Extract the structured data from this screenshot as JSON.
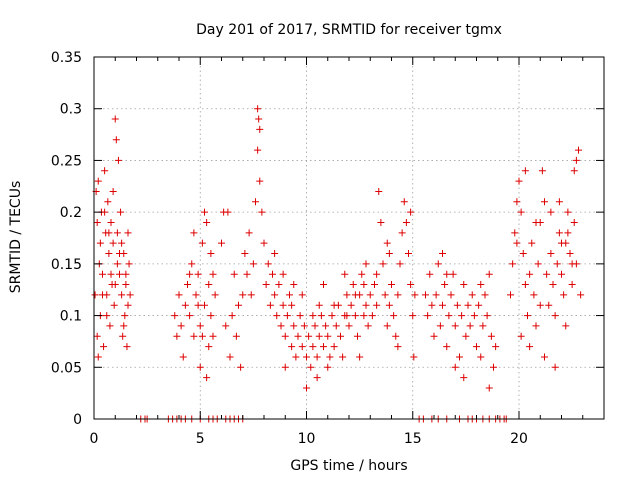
{
  "chart_data": {
    "type": "scatter",
    "title": "Day 201 of 2017, SRMTID for receiver tgmx",
    "xlabel": "GPS time / hours",
    "ylabel": "SRMTID / TECUs",
    "xlim": [
      0,
      24
    ],
    "ylim": [
      0,
      0.35
    ],
    "xticks": [
      0,
      5,
      10,
      15,
      20
    ],
    "yticks": [
      0,
      0.05,
      0.1,
      0.15,
      0.2,
      0.25,
      0.3,
      0.35
    ],
    "xtick_labels": [
      "0",
      "5",
      "10",
      "15",
      "20"
    ],
    "ytick_labels": [
      "0",
      "0.05",
      "0.1",
      "0.15",
      "0.2",
      "0.25",
      "0.3",
      "0.35"
    ],
    "grid": true,
    "marker": "plus",
    "color": "#dd0000",
    "series": [
      {
        "name": "SRMTID",
        "points": [
          [
            0.05,
            0.12
          ],
          [
            0.1,
            0.22
          ],
          [
            0.15,
            0.08
          ],
          [
            0.2,
            0.23
          ],
          [
            0.25,
            0.15
          ],
          [
            0.3,
            0.1
          ],
          [
            0.35,
            0.2
          ],
          [
            0.4,
            0.14
          ],
          [
            0.45,
            0.07
          ],
          [
            0.5,
            0.24
          ],
          [
            0.55,
            0.18
          ],
          [
            0.6,
            0.12
          ],
          [
            0.65,
            0.21
          ],
          [
            0.7,
            0.16
          ],
          [
            0.75,
            0.09
          ],
          [
            0.8,
            0.19
          ],
          [
            0.85,
            0.13
          ],
          [
            0.9,
            0.17
          ],
          [
            0.95,
            0.11
          ],
          [
            1.0,
            0.29
          ],
          [
            1.05,
            0.27
          ],
          [
            1.1,
            0.15
          ],
          [
            1.15,
            0.25
          ],
          [
            1.2,
            0.14
          ],
          [
            1.25,
            0.2
          ],
          [
            1.3,
            0.12
          ],
          [
            1.35,
            0.08
          ],
          [
            1.4,
            0.16
          ],
          [
            1.45,
            0.1
          ],
          [
            1.5,
            0.13
          ],
          [
            1.55,
            0.07
          ],
          [
            1.6,
            0.18
          ],
          [
            1.65,
            0.15
          ],
          [
            1.7,
            0.12
          ],
          [
            0.2,
            0.06
          ],
          [
            0.5,
            0.2
          ],
          [
            0.8,
            0.14
          ],
          [
            1.1,
            0.18
          ],
          [
            1.4,
            0.09
          ],
          [
            0.3,
            0.17
          ],
          [
            0.6,
            0.1
          ],
          [
            0.9,
            0.22
          ],
          [
            1.2,
            0.16
          ],
          [
            1.5,
            0.14
          ],
          [
            0.4,
            0.12
          ],
          [
            0.7,
            0.18
          ],
          [
            1.0,
            0.13
          ],
          [
            1.3,
            0.17
          ],
          [
            1.6,
            0.11
          ],
          [
            0.15,
            0.19
          ],
          [
            2.2,
            0.0
          ],
          [
            2.4,
            0.0
          ],
          [
            2.5,
            0.0
          ],
          [
            3.5,
            0.0
          ],
          [
            3.7,
            0.0
          ],
          [
            3.9,
            0.0
          ],
          [
            4.1,
            0.0
          ],
          [
            4.3,
            0.0
          ],
          [
            4.6,
            0.0
          ],
          [
            5.0,
            0.0
          ],
          [
            5.4,
            0.0
          ],
          [
            5.6,
            0.0
          ],
          [
            5.8,
            0.0
          ],
          [
            6.2,
            0.0
          ],
          [
            6.4,
            0.0
          ],
          [
            6.6,
            0.0
          ],
          [
            6.8,
            0.0
          ],
          [
            7.0,
            0.0
          ],
          [
            3.8,
            0.1
          ],
          [
            3.9,
            0.08
          ],
          [
            4.0,
            0.12
          ],
          [
            4.1,
            0.09
          ],
          [
            4.2,
            0.06
          ],
          [
            4.3,
            0.11
          ],
          [
            4.4,
            0.13
          ],
          [
            4.5,
            0.1
          ],
          [
            4.6,
            0.15
          ],
          [
            4.7,
            0.08
          ],
          [
            4.8,
            0.12
          ],
          [
            4.9,
            0.14
          ],
          [
            5.0,
            0.09
          ],
          [
            5.1,
            0.17
          ],
          [
            5.2,
            0.11
          ],
          [
            5.3,
            0.19
          ],
          [
            5.4,
            0.13
          ],
          [
            5.5,
            0.16
          ],
          [
            5.6,
            0.08
          ],
          [
            5.7,
            0.12
          ],
          [
            5.2,
            0.2
          ],
          [
            5.3,
            0.04
          ],
          [
            5.4,
            0.07
          ],
          [
            5.0,
            0.05
          ],
          [
            4.5,
            0.14
          ],
          [
            4.7,
            0.18
          ],
          [
            5.5,
            0.1
          ],
          [
            5.1,
            0.08
          ],
          [
            4.9,
            0.11
          ],
          [
            5.6,
            0.14
          ],
          [
            6.0,
            0.17
          ],
          [
            6.1,
            0.2
          ],
          [
            6.2,
            0.09
          ],
          [
            6.3,
            0.2
          ],
          [
            6.4,
            0.06
          ],
          [
            6.5,
            0.1
          ],
          [
            6.6,
            0.14
          ],
          [
            6.9,
            0.05
          ],
          [
            6.7,
            0.08
          ],
          [
            6.8,
            0.11
          ],
          [
            7.0,
            0.12
          ],
          [
            7.1,
            0.16
          ],
          [
            7.2,
            0.14
          ],
          [
            7.3,
            0.18
          ],
          [
            7.4,
            0.12
          ],
          [
            7.5,
            0.15
          ],
          [
            7.6,
            0.21
          ],
          [
            7.7,
            0.3
          ],
          [
            7.75,
            0.29
          ],
          [
            7.8,
            0.28
          ],
          [
            7.7,
            0.26
          ],
          [
            7.8,
            0.23
          ],
          [
            7.9,
            0.2
          ],
          [
            8.0,
            0.17
          ],
          [
            8.1,
            0.13
          ],
          [
            8.2,
            0.15
          ],
          [
            8.3,
            0.11
          ],
          [
            8.4,
            0.14
          ],
          [
            8.5,
            0.12
          ],
          [
            8.6,
            0.1
          ],
          [
            8.7,
            0.13
          ],
          [
            8.8,
            0.09
          ],
          [
            8.9,
            0.11
          ],
          [
            9.0,
            0.08
          ],
          [
            9.1,
            0.1
          ],
          [
            9.2,
            0.12
          ],
          [
            9.3,
            0.07
          ],
          [
            9.4,
            0.09
          ],
          [
            9.5,
            0.06
          ],
          [
            9.6,
            0.08
          ],
          [
            9.7,
            0.1
          ],
          [
            9.8,
            0.07
          ],
          [
            9.9,
            0.09
          ],
          [
            10.0,
            0.06
          ],
          [
            10.1,
            0.08
          ],
          [
            10.2,
            0.05
          ],
          [
            10.3,
            0.07
          ],
          [
            10.4,
            0.09
          ],
          [
            10.5,
            0.06
          ],
          [
            10.6,
            0.08
          ],
          [
            10.7,
            0.1
          ],
          [
            10.8,
            0.07
          ],
          [
            10.9,
            0.09
          ],
          [
            11.0,
            0.08
          ],
          [
            11.1,
            0.06
          ],
          [
            11.2,
            0.1
          ],
          [
            11.3,
            0.07
          ],
          [
            11.4,
            0.09
          ],
          [
            11.5,
            0.11
          ],
          [
            11.6,
            0.08
          ],
          [
            11.7,
            0.06
          ],
          [
            11.8,
            0.1
          ],
          [
            11.9,
            0.12
          ],
          [
            12.0,
            0.09
          ],
          [
            12.1,
            0.11
          ],
          [
            12.2,
            0.13
          ],
          [
            12.3,
            0.1
          ],
          [
            12.4,
            0.08
          ],
          [
            12.5,
            0.12
          ],
          [
            12.6,
            0.14
          ],
          [
            12.7,
            0.1
          ],
          [
            12.8,
            0.11
          ],
          [
            12.9,
            0.09
          ],
          [
            13.0,
            0.12
          ],
          [
            13.1,
            0.1
          ],
          [
            13.2,
            0.13
          ],
          [
            13.3,
            0.11
          ],
          [
            13.4,
            0.22
          ],
          [
            13.5,
            0.19
          ],
          [
            13.6,
            0.15
          ],
          [
            13.7,
            0.12
          ],
          [
            13.8,
            0.09
          ],
          [
            13.9,
            0.11
          ],
          [
            14.0,
            0.13
          ],
          [
            14.1,
            0.1
          ],
          [
            14.2,
            0.08
          ],
          [
            14.3,
            0.12
          ],
          [
            14.4,
            0.15
          ],
          [
            14.5,
            0.18
          ],
          [
            14.6,
            0.21
          ],
          [
            14.7,
            0.19
          ],
          [
            14.8,
            0.16
          ],
          [
            14.9,
            0.13
          ],
          [
            15.0,
            0.1
          ],
          [
            15.1,
            0.12
          ],
          [
            9.0,
            0.05
          ],
          [
            10.0,
            0.03
          ],
          [
            10.5,
            0.04
          ],
          [
            11.0,
            0.05
          ],
          [
            12.5,
            0.06
          ],
          [
            9.3,
            0.11
          ],
          [
            9.8,
            0.12
          ],
          [
            10.3,
            0.1
          ],
          [
            10.8,
            0.13
          ],
          [
            11.3,
            0.11
          ],
          [
            11.8,
            0.14
          ],
          [
            12.3,
            0.12
          ],
          [
            12.8,
            0.15
          ],
          [
            13.3,
            0.14
          ],
          [
            13.8,
            0.17
          ],
          [
            8.5,
            0.16
          ],
          [
            8.9,
            0.14
          ],
          [
            9.4,
            0.13
          ],
          [
            10.6,
            0.11
          ],
          [
            11.9,
            0.1
          ],
          [
            12.7,
            0.13
          ],
          [
            13.9,
            0.16
          ],
          [
            14.3,
            0.07
          ],
          [
            15.05,
            0.06
          ],
          [
            14.9,
            0.2
          ],
          [
            15.3,
            0.0
          ],
          [
            15.5,
            0.0
          ],
          [
            15.9,
            0.0
          ],
          [
            16.2,
            0.0
          ],
          [
            16.6,
            0.0
          ],
          [
            17.2,
            0.0
          ],
          [
            17.6,
            0.0
          ],
          [
            17.8,
            0.0
          ],
          [
            18.0,
            0.0
          ],
          [
            18.3,
            0.0
          ],
          [
            18.6,
            0.0
          ],
          [
            18.9,
            0.0
          ],
          [
            19.1,
            0.0
          ],
          [
            19.3,
            0.0
          ],
          [
            19.4,
            0.0
          ],
          [
            15.6,
            0.12
          ],
          [
            15.7,
            0.1
          ],
          [
            15.8,
            0.14
          ],
          [
            15.9,
            0.11
          ],
          [
            16.0,
            0.08
          ],
          [
            16.1,
            0.12
          ],
          [
            16.2,
            0.15
          ],
          [
            16.3,
            0.09
          ],
          [
            16.4,
            0.11
          ],
          [
            16.5,
            0.13
          ],
          [
            16.6,
            0.07
          ],
          [
            16.7,
            0.1
          ],
          [
            16.8,
            0.12
          ],
          [
            16.9,
            0.14
          ],
          [
            17.0,
            0.09
          ],
          [
            17.1,
            0.11
          ],
          [
            17.2,
            0.06
          ],
          [
            17.3,
            0.1
          ],
          [
            17.4,
            0.13
          ],
          [
            17.5,
            0.08
          ],
          [
            17.6,
            0.11
          ],
          [
            17.7,
            0.09
          ],
          [
            17.8,
            0.12
          ],
          [
            17.9,
            0.1
          ],
          [
            18.0,
            0.07
          ],
          [
            18.1,
            0.11
          ],
          [
            18.2,
            0.13
          ],
          [
            18.3,
            0.09
          ],
          [
            18.4,
            0.12
          ],
          [
            18.5,
            0.1
          ],
          [
            18.6,
            0.14
          ],
          [
            18.7,
            0.08
          ],
          [
            18.8,
            0.05
          ],
          [
            18.9,
            0.07
          ],
          [
            16.4,
            0.16
          ],
          [
            16.6,
            0.14
          ],
          [
            17.0,
            0.05
          ],
          [
            17.4,
            0.04
          ],
          [
            18.2,
            0.06
          ],
          [
            18.6,
            0.03
          ],
          [
            19.6,
            0.12
          ],
          [
            19.7,
            0.15
          ],
          [
            19.8,
            0.18
          ],
          [
            19.9,
            0.21
          ],
          [
            20.0,
            0.23
          ],
          [
            20.1,
            0.2
          ],
          [
            20.2,
            0.16
          ],
          [
            20.3,
            0.13
          ],
          [
            20.4,
            0.1
          ],
          [
            20.5,
            0.14
          ],
          [
            20.6,
            0.17
          ],
          [
            20.7,
            0.12
          ],
          [
            20.8,
            0.09
          ],
          [
            20.9,
            0.15
          ],
          [
            21.0,
            0.19
          ],
          [
            21.1,
            0.24
          ],
          [
            21.2,
            0.21
          ],
          [
            21.3,
            0.14
          ],
          [
            21.4,
            0.11
          ],
          [
            21.5,
            0.16
          ],
          [
            21.6,
            0.13
          ],
          [
            21.7,
            0.1
          ],
          [
            21.8,
            0.15
          ],
          [
            21.9,
            0.18
          ],
          [
            22.0,
            0.14
          ],
          [
            22.1,
            0.12
          ],
          [
            22.2,
            0.17
          ],
          [
            22.3,
            0.2
          ],
          [
            22.4,
            0.16
          ],
          [
            22.5,
            0.13
          ],
          [
            22.6,
            0.19
          ],
          [
            22.7,
            0.15
          ],
          [
            22.8,
            0.26
          ],
          [
            22.7,
            0.25
          ],
          [
            22.6,
            0.24
          ],
          [
            22.9,
            0.12
          ],
          [
            22.3,
            0.18
          ],
          [
            21.9,
            0.21
          ],
          [
            20.5,
            0.07
          ],
          [
            21.2,
            0.06
          ],
          [
            20.1,
            0.08
          ],
          [
            21.7,
            0.05
          ],
          [
            22.2,
            0.09
          ],
          [
            20.8,
            0.19
          ],
          [
            21.5,
            0.2
          ],
          [
            22.0,
            0.17
          ],
          [
            22.5,
            0.15
          ],
          [
            20.3,
            0.24
          ],
          [
            19.9,
            0.17
          ],
          [
            21.0,
            0.11
          ]
        ]
      }
    ]
  }
}
